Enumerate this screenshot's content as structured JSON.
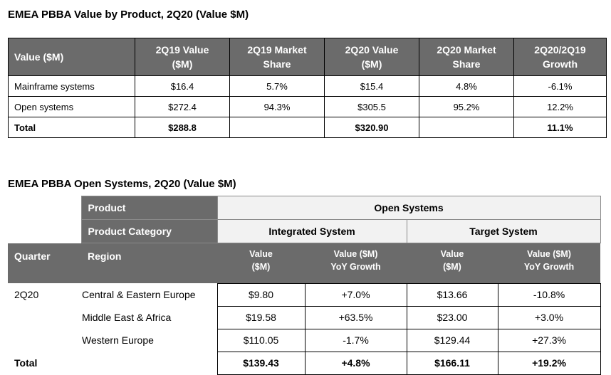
{
  "table1": {
    "title": "EMEA PBBA Value by Product, 2Q20 (Value $M)",
    "headers": [
      "Value ($M)",
      "2Q19 Value ($M)",
      "2Q19 Market Share",
      "2Q20 Value ($M)",
      "2Q20 Market Share",
      "2Q20/2Q19 Growth"
    ],
    "header_lines": [
      [
        "Value ($M)",
        ""
      ],
      [
        "2Q19 Value",
        "($M)"
      ],
      [
        "2Q19 Market",
        "Share"
      ],
      [
        "2Q20 Value",
        "($M)"
      ],
      [
        "2Q20 Market",
        "Share"
      ],
      [
        "2Q20/2Q19",
        "Growth"
      ]
    ],
    "rows": [
      [
        "Mainframe systems",
        "$16.4",
        "5.7%",
        "$15.4",
        "4.8%",
        "-6.1%"
      ],
      [
        "Open systems",
        "$272.4",
        "94.3%",
        "$305.5",
        "95.2%",
        "12.2%"
      ],
      [
        "Total",
        "$288.8",
        "",
        "$320.90",
        "",
        "11.1%"
      ]
    ]
  },
  "table2": {
    "title": "EMEA PBBA Open Systems, 2Q20 (Value $M)",
    "product_label": "Product",
    "product_value": "Open Systems",
    "category_label": "Product Category",
    "categories": [
      "Integrated System",
      "Target System"
    ],
    "quarter_label": "Quarter",
    "region_label": "Region",
    "col_headers": [
      [
        "Value",
        "($M)"
      ],
      [
        "Value ($M)",
        "YoY Growth"
      ],
      [
        "Value",
        "($M)"
      ],
      [
        "Value ($M)",
        "YoY Growth"
      ]
    ],
    "rows": [
      {
        "quarter": "2Q20",
        "region": "Central & Eastern Europe",
        "values": [
          "$9.80",
          "+7.0%",
          "$13.66",
          "-10.8%"
        ]
      },
      {
        "quarter": "",
        "region": "Middle East & Africa",
        "values": [
          "$19.58",
          "+63.5%",
          "$23.00",
          "+3.0%"
        ]
      },
      {
        "quarter": "",
        "region": "Western Europe",
        "values": [
          "$110.05",
          "-1.7%",
          "$129.44",
          "+27.3%"
        ]
      }
    ],
    "total": {
      "label": "Total",
      "values": [
        "$139.43",
        "+4.8%",
        "$166.11",
        "+19.2%"
      ]
    }
  }
}
